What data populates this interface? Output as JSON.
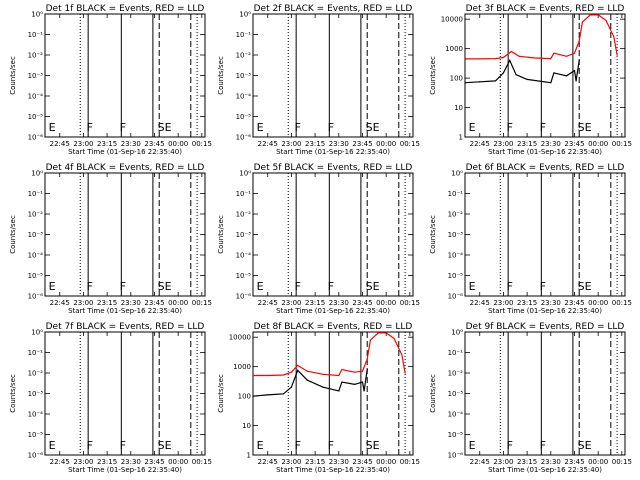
{
  "chart_data": [
    {
      "type": "line",
      "title": "Det 1f BLACK = Events, RED = LLD",
      "xlabel": "Start Time (01-Sep-16 22:35:40)",
      "ylabel": "Counts/sec",
      "x_ticks": [
        "22:45",
        "23:00",
        "23:15",
        "23:30",
        "23:45",
        "00:00",
        "00:15"
      ],
      "xlim": [
        "22:35:40",
        "00:17"
      ],
      "y_log": true,
      "y_ticks": [
        "10⁰",
        "10⁻¹",
        "10⁻²",
        "10⁻³",
        "10⁻⁴",
        "10⁻⁵",
        "10⁻⁶"
      ],
      "y_tick_values": [
        1,
        0.1,
        0.01,
        0.001,
        0.0001,
        1e-05,
        1e-06
      ],
      "ylim": [
        1e-06,
        1
      ],
      "event_labels": [
        "E",
        "F",
        "F",
        "SE"
      ],
      "series": []
    },
    {
      "type": "line",
      "title": "Det 2f BLACK = Events, RED = LLD",
      "xlabel": "Start Time (01-Sep-16 22:35:40)",
      "ylabel": "Counts/sec",
      "x_ticks": [
        "22:45",
        "23:00",
        "23:15",
        "23:30",
        "23:45",
        "00:00",
        "00:15"
      ],
      "xlim": [
        "22:35:40",
        "00:17"
      ],
      "y_log": true,
      "y_ticks": [
        "10⁰",
        "10⁻¹",
        "10⁻²",
        "10⁻³",
        "10⁻⁴",
        "10⁻⁵",
        "10⁻⁶"
      ],
      "y_tick_values": [
        1,
        0.1,
        0.01,
        0.001,
        0.0001,
        1e-05,
        1e-06
      ],
      "ylim": [
        1e-06,
        1
      ],
      "event_labels": [
        "E",
        "F",
        "F",
        "SE"
      ],
      "series": []
    },
    {
      "type": "line",
      "title": "Det 3f BLACK = Events, RED = LLD",
      "xlabel": "Start Time (01-Sep-16 22:35:40)",
      "ylabel": "Counts/sec",
      "x_ticks": [
        "22:45",
        "23:00",
        "23:15",
        "23:30",
        "23:45",
        "00:00",
        "00:15"
      ],
      "xlim": [
        "22:35:40",
        "00:17"
      ],
      "y_log": true,
      "y_ticks": [
        "1",
        "10",
        "100",
        "1000",
        "10000"
      ],
      "y_tick_values": [
        1,
        10,
        100,
        1000,
        10000
      ],
      "ylim": [
        1,
        15000
      ],
      "event_labels": [
        "E",
        "F",
        "F",
        "SE"
      ],
      "series": [
        {
          "color": "#ff0000",
          "x": [
            "22:36",
            "22:45",
            "22:55",
            "23:00",
            "23:05",
            "23:10",
            "23:20",
            "23:30",
            "23:32",
            "23:40",
            "23:45",
            "23:48",
            "23:50",
            "23:55",
            "00:00",
            "00:05",
            "00:10",
            "00:12"
          ],
          "y": [
            450,
            450,
            460,
            500,
            800,
            550,
            480,
            460,
            700,
            550,
            700,
            1800,
            8000,
            14000,
            14000,
            9000,
            2500,
            600
          ]
        },
        {
          "color": "#000000",
          "x": [
            "22:36",
            "22:45",
            "22:55",
            "23:00",
            "23:04",
            "23:08",
            "23:15",
            "23:30",
            "23:32",
            "23:40",
            "23:45",
            "23:46",
            "23:48"
          ],
          "y": [
            70,
            75,
            80,
            150,
            400,
            130,
            90,
            70,
            150,
            120,
            180,
            80,
            400
          ]
        }
      ]
    },
    {
      "type": "line",
      "title": "Det 4f BLACK = Events, RED = LLD",
      "xlabel": "Start Time (01-Sep-16 22:35:40)",
      "ylabel": "Counts/sec",
      "x_ticks": [
        "22:45",
        "23:00",
        "23:15",
        "23:30",
        "23:45",
        "00:00",
        "00:15"
      ],
      "xlim": [
        "22:35:40",
        "00:17"
      ],
      "y_log": true,
      "y_ticks": [
        "10⁰",
        "10⁻¹",
        "10⁻²",
        "10⁻³",
        "10⁻⁴",
        "10⁻⁵",
        "10⁻⁶"
      ],
      "y_tick_values": [
        1,
        0.1,
        0.01,
        0.001,
        0.0001,
        1e-05,
        1e-06
      ],
      "ylim": [
        1e-06,
        1
      ],
      "event_labels": [
        "E",
        "F",
        "F",
        "SE"
      ],
      "series": []
    },
    {
      "type": "line",
      "title": "Det 5f BLACK = Events, RED = LLD",
      "xlabel": "Start Time (01-Sep-16 22:35:40)",
      "ylabel": "Counts/sec",
      "x_ticks": [
        "22:45",
        "23:00",
        "23:15",
        "23:30",
        "23:45",
        "00:00",
        "00:15"
      ],
      "xlim": [
        "22:35:40",
        "00:17"
      ],
      "y_log": true,
      "y_ticks": [
        "10⁰",
        "10⁻¹",
        "10⁻²",
        "10⁻³",
        "10⁻⁴",
        "10⁻⁵",
        "10⁻⁶"
      ],
      "y_tick_values": [
        1,
        0.1,
        0.01,
        0.001,
        0.0001,
        1e-05,
        1e-06
      ],
      "ylim": [
        1e-06,
        1
      ],
      "event_labels": [
        "E",
        "F",
        "F",
        "SE"
      ],
      "series": []
    },
    {
      "type": "line",
      "title": "Det 6f BLACK = Events, RED = LLD",
      "xlabel": "Start Time (01-Sep-16 22:35:40)",
      "ylabel": "Counts/sec",
      "x_ticks": [
        "22:45",
        "23:00",
        "23:15",
        "23:30",
        "23:45",
        "00:00",
        "00:15"
      ],
      "xlim": [
        "22:35:40",
        "00:17"
      ],
      "y_log": true,
      "y_ticks": [
        "10⁰",
        "10⁻¹",
        "10⁻²",
        "10⁻³",
        "10⁻⁴",
        "10⁻⁵",
        "10⁻⁶"
      ],
      "y_tick_values": [
        1,
        0.1,
        0.01,
        0.001,
        0.0001,
        1e-05,
        1e-06
      ],
      "ylim": [
        1e-06,
        1
      ],
      "event_labels": [
        "E",
        "F",
        "F",
        "SE"
      ],
      "series": []
    },
    {
      "type": "line",
      "title": "Det 7f BLACK = Events, RED = LLD",
      "xlabel": "Start Time (01-Sep-16 22:35:40)",
      "ylabel": "Counts/sec",
      "x_ticks": [
        "22:45",
        "23:00",
        "23:15",
        "23:30",
        "23:45",
        "00:00",
        "00:15"
      ],
      "xlim": [
        "22:35:40",
        "00:17"
      ],
      "y_log": true,
      "y_ticks": [
        "10⁰",
        "10⁻¹",
        "10⁻²",
        "10⁻³",
        "10⁻⁴",
        "10⁻⁵",
        "10⁻⁶"
      ],
      "y_tick_values": [
        1,
        0.1,
        0.01,
        0.001,
        0.0001,
        1e-05,
        1e-06
      ],
      "ylim": [
        1e-06,
        1
      ],
      "event_labels": [
        "E",
        "F",
        "F",
        "SE"
      ],
      "series": []
    },
    {
      "type": "line",
      "title": "Det 8f BLACK = Events, RED = LLD",
      "xlabel": "Start Time (01-Sep-16 22:35:40)",
      "ylabel": "Counts/sec",
      "x_ticks": [
        "22:45",
        "23:00",
        "23:15",
        "23:30",
        "23:45",
        "00:00",
        "00:15"
      ],
      "xlim": [
        "22:35:40",
        "00:17"
      ],
      "y_log": true,
      "y_ticks": [
        "1",
        "10",
        "100",
        "1000",
        "10000"
      ],
      "y_tick_values": [
        1,
        10,
        100,
        1000,
        10000
      ],
      "ylim": [
        1,
        15000
      ],
      "event_labels": [
        "E",
        "F",
        "F",
        "SE"
      ],
      "series": [
        {
          "color": "#ff0000",
          "x": [
            "22:36",
            "22:45",
            "22:55",
            "23:00",
            "23:04",
            "23:10",
            "23:20",
            "23:30",
            "23:32",
            "23:40",
            "23:45",
            "23:48",
            "23:50",
            "23:55",
            "00:00",
            "00:05",
            "00:10",
            "00:12"
          ],
          "y": [
            500,
            500,
            520,
            650,
            1100,
            700,
            550,
            500,
            800,
            650,
            700,
            1800,
            8000,
            14000,
            14000,
            9000,
            2500,
            600
          ]
        },
        {
          "color": "#000000",
          "x": [
            "22:36",
            "22:45",
            "22:55",
            "23:00",
            "23:04",
            "23:10",
            "23:20",
            "23:30",
            "23:32",
            "23:40",
            "23:45",
            "23:46",
            "23:48"
          ],
          "y": [
            100,
            110,
            120,
            200,
            750,
            350,
            200,
            150,
            300,
            250,
            300,
            150,
            800
          ]
        }
      ]
    },
    {
      "type": "line",
      "title": "Det 9f BLACK = Events, RED = LLD",
      "xlabel": "Start Time (01-Sep-16 22:35:40)",
      "ylabel": "Counts/sec",
      "x_ticks": [
        "22:45",
        "23:00",
        "23:15",
        "23:30",
        "23:45",
        "00:00",
        "00:15"
      ],
      "xlim": [
        "22:35:40",
        "00:17"
      ],
      "y_log": true,
      "y_ticks": [
        "10⁰",
        "10⁻¹",
        "10⁻²",
        "10⁻³",
        "10⁻⁴",
        "10⁻⁵",
        "10⁻⁶"
      ],
      "y_tick_values": [
        1,
        0.1,
        0.01,
        0.001,
        0.0001,
        1e-05,
        1e-06
      ],
      "ylim": [
        1e-06,
        1
      ],
      "event_labels": [
        "E",
        "F",
        "F",
        "SE"
      ],
      "series": []
    }
  ]
}
